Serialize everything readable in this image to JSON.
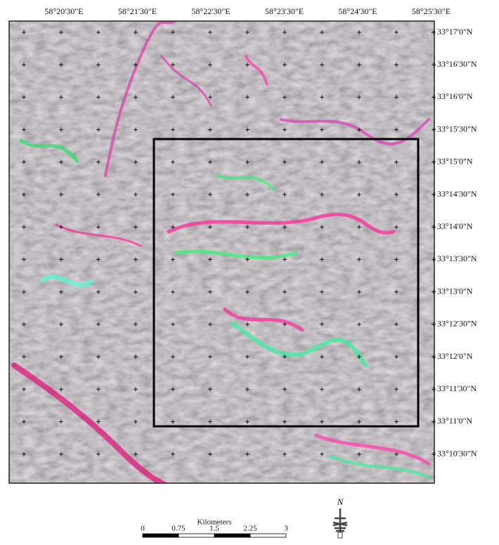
{
  "map": {
    "longitude_labels": [
      "58°20'30\"E",
      "58°21'30\"E",
      "58°22'30\"E",
      "58°23'30\"E",
      "58°24'30\"E",
      "58°25'30\"E"
    ],
    "latitude_labels": [
      "33°17'0\"N",
      "33°16'30\"N",
      "33°16'0\"N",
      "33°15'30\"N",
      "33°15'0\"N",
      "33°14'30\"N",
      "33°14'0\"N",
      "33°13'30\"N",
      "33°13'0\"N",
      "33°12'30\"N",
      "33°12'0\"N",
      "33°11'30\"N",
      "33°11'0\"N",
      "33°10'30\"N"
    ],
    "scale_bar": {
      "title": "Kilometers",
      "ticks": [
        "0",
        "0.75",
        "1.5",
        "2.25",
        "3"
      ]
    },
    "north_label": "N"
  }
}
